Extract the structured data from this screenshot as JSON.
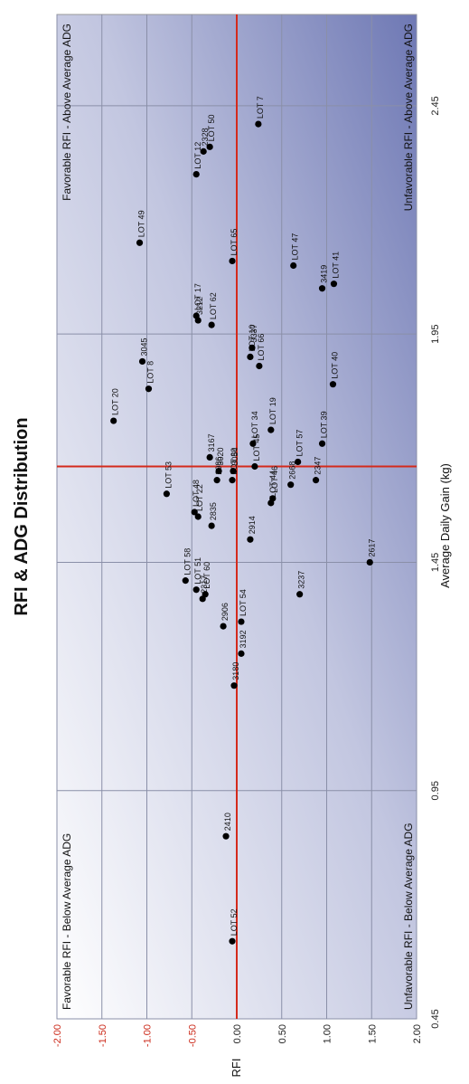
{
  "chart_data": {
    "type": "scatter",
    "title": "RFI & ADG Distribution",
    "xlabel": "Average Daily Gain (kg)",
    "ylabel": "RFI",
    "xlim": [
      0.45,
      2.65
    ],
    "ylim": [
      -2.0,
      2.0
    ],
    "x_ticks": [
      "0.45",
      "0.95",
      "1.45",
      "1.95",
      "2.45"
    ],
    "y_ticks": [
      "-2.00",
      "-1.50",
      "-1.00",
      "-0.50",
      "0.00",
      "0.50",
      "1.00",
      "1.50",
      "2.00"
    ],
    "grid": true,
    "reference_lines": {
      "x": 1.66,
      "y": 0.0,
      "color": "#d42a1c"
    },
    "quadrant_labels": {
      "top_left": "Favorable RFI - Below Average ADG",
      "top_right": "Favorable RFI - Above Average ADG",
      "bottom_left": "Unfavorable RFI - Below Average ADG",
      "bottom_right": "Unfavorable RFI - Above Average ADG"
    },
    "points": [
      {
        "label": "LOT 52",
        "x": 0.62,
        "y": -0.05
      },
      {
        "label": "2410",
        "x": 0.85,
        "y": -0.12
      },
      {
        "label": "3180",
        "x": 1.18,
        "y": -0.03
      },
      {
        "label": "3192",
        "x": 1.25,
        "y": 0.05
      },
      {
        "label": "2906",
        "x": 1.31,
        "y": -0.15
      },
      {
        "label": "LOT 54",
        "x": 1.32,
        "y": 0.05
      },
      {
        "label": "2317",
        "x": 1.37,
        "y": -0.38
      },
      {
        "label": "LOT 60",
        "x": 1.38,
        "y": -0.35
      },
      {
        "label": "LOT 51",
        "x": 1.39,
        "y": -0.45
      },
      {
        "label": "LOT 58",
        "x": 1.41,
        "y": -0.57
      },
      {
        "label": "3237",
        "x": 1.38,
        "y": 0.7
      },
      {
        "label": "2617",
        "x": 1.45,
        "y": 1.48
      },
      {
        "label": "2914",
        "x": 1.5,
        "y": 0.15
      },
      {
        "label": "LOT 22",
        "x": 1.55,
        "y": -0.43
      },
      {
        "label": "2835",
        "x": 1.53,
        "y": -0.28
      },
      {
        "label": "LOT 48",
        "x": 1.56,
        "y": -0.47
      },
      {
        "label": "LOT 44",
        "x": 1.58,
        "y": 0.38
      },
      {
        "label": "LOT 46",
        "x": 1.59,
        "y": 0.4
      },
      {
        "label": "LOT 53",
        "x": 1.6,
        "y": -0.78
      },
      {
        "label": "2668",
        "x": 1.62,
        "y": 0.6
      },
      {
        "label": "2347",
        "x": 1.63,
        "y": 0.88
      },
      {
        "label": "2986",
        "x": 1.63,
        "y": -0.22
      },
      {
        "label": "3020",
        "x": 1.65,
        "y": -0.2
      },
      {
        "label": "3167",
        "x": 1.68,
        "y": -0.3
      },
      {
        "label": "LOT 30",
        "x": 1.63,
        "y": -0.05
      },
      {
        "label": "3054",
        "x": 1.65,
        "y": -0.04
      },
      {
        "label": "LOT 45",
        "x": 1.66,
        "y": 0.2
      },
      {
        "label": "LOT 57",
        "x": 1.67,
        "y": 0.68
      },
      {
        "label": "LOT 34",
        "x": 1.71,
        "y": 0.18
      },
      {
        "label": "LOT 39",
        "x": 1.71,
        "y": 0.95
      },
      {
        "label": "LOT 19",
        "x": 1.74,
        "y": 0.38
      },
      {
        "label": "LOT 20",
        "x": 1.76,
        "y": -1.37
      },
      {
        "label": "LOT 8",
        "x": 1.83,
        "y": -0.98
      },
      {
        "label": "LOT 40",
        "x": 1.84,
        "y": 1.07
      },
      {
        "label": "3045",
        "x": 1.89,
        "y": -1.05
      },
      {
        "label": "LOT 66",
        "x": 1.88,
        "y": 0.25
      },
      {
        "label": "LOT 10",
        "x": 1.9,
        "y": 0.15
      },
      {
        "label": "3337",
        "x": 1.92,
        "y": 0.17
      },
      {
        "label": "LOT 62",
        "x": 1.97,
        "y": -0.28
      },
      {
        "label": "3212",
        "x": 1.98,
        "y": -0.43
      },
      {
        "label": "LOT 17",
        "x": 1.99,
        "y": -0.45
      },
      {
        "label": "3419",
        "x": 2.05,
        "y": 0.95
      },
      {
        "label": "LOT 41",
        "x": 2.06,
        "y": 1.08
      },
      {
        "label": "LOT 47",
        "x": 2.1,
        "y": 0.63
      },
      {
        "label": "LOT 65",
        "x": 2.11,
        "y": -0.05
      },
      {
        "label": "LOT 49",
        "x": 2.15,
        "y": -1.08
      },
      {
        "label": "LOT 12",
        "x": 2.3,
        "y": -0.45
      },
      {
        "label": "2328",
        "x": 2.35,
        "y": -0.37
      },
      {
        "label": "LOT 50",
        "x": 2.36,
        "y": -0.3
      },
      {
        "label": "LOT 7",
        "x": 2.41,
        "y": 0.24
      }
    ]
  }
}
